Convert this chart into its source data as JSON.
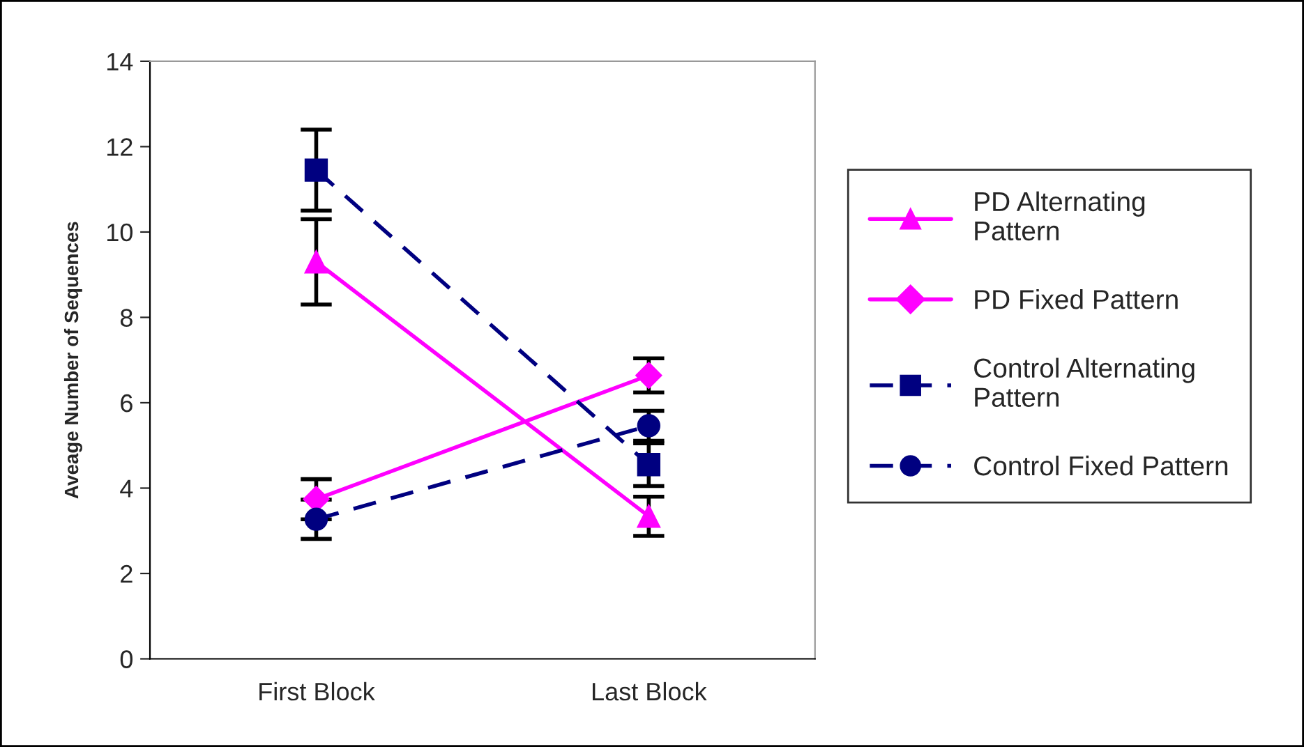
{
  "chart_data": {
    "type": "line",
    "ylabel": "Aveage Number of Sequences",
    "categories": [
      "First Block",
      "Last Block"
    ],
    "ylim": [
      0,
      14
    ],
    "yticks": [
      0,
      2,
      4,
      6,
      8,
      10,
      12,
      14
    ],
    "grid": false,
    "legend": "right",
    "series": [
      {
        "name": "PD Alternating\nPattern",
        "color": "#ff00ff",
        "values": [
          9.3,
          3.34
        ],
        "errors": [
          1.0,
          0.46
        ],
        "marker": "triangle",
        "line_style": "solid"
      },
      {
        "name": "PD Fixed Pattern",
        "color": "#ff00ff",
        "values": [
          3.74,
          6.64
        ],
        "errors": [
          0.47,
          0.4
        ],
        "marker": "diamond",
        "line_style": "solid"
      },
      {
        "name": "Control Alternating\nPattern",
        "color": "#000080",
        "values": [
          11.45,
          4.55
        ],
        "errors": [
          0.95,
          0.5
        ],
        "marker": "square",
        "line_style": "dashed"
      },
      {
        "name": "Control Fixed Pattern",
        "color": "#000080",
        "values": [
          3.27,
          5.46
        ],
        "errors": [
          0.46,
          0.35
        ],
        "marker": "circle",
        "line_style": "dashed"
      }
    ]
  }
}
